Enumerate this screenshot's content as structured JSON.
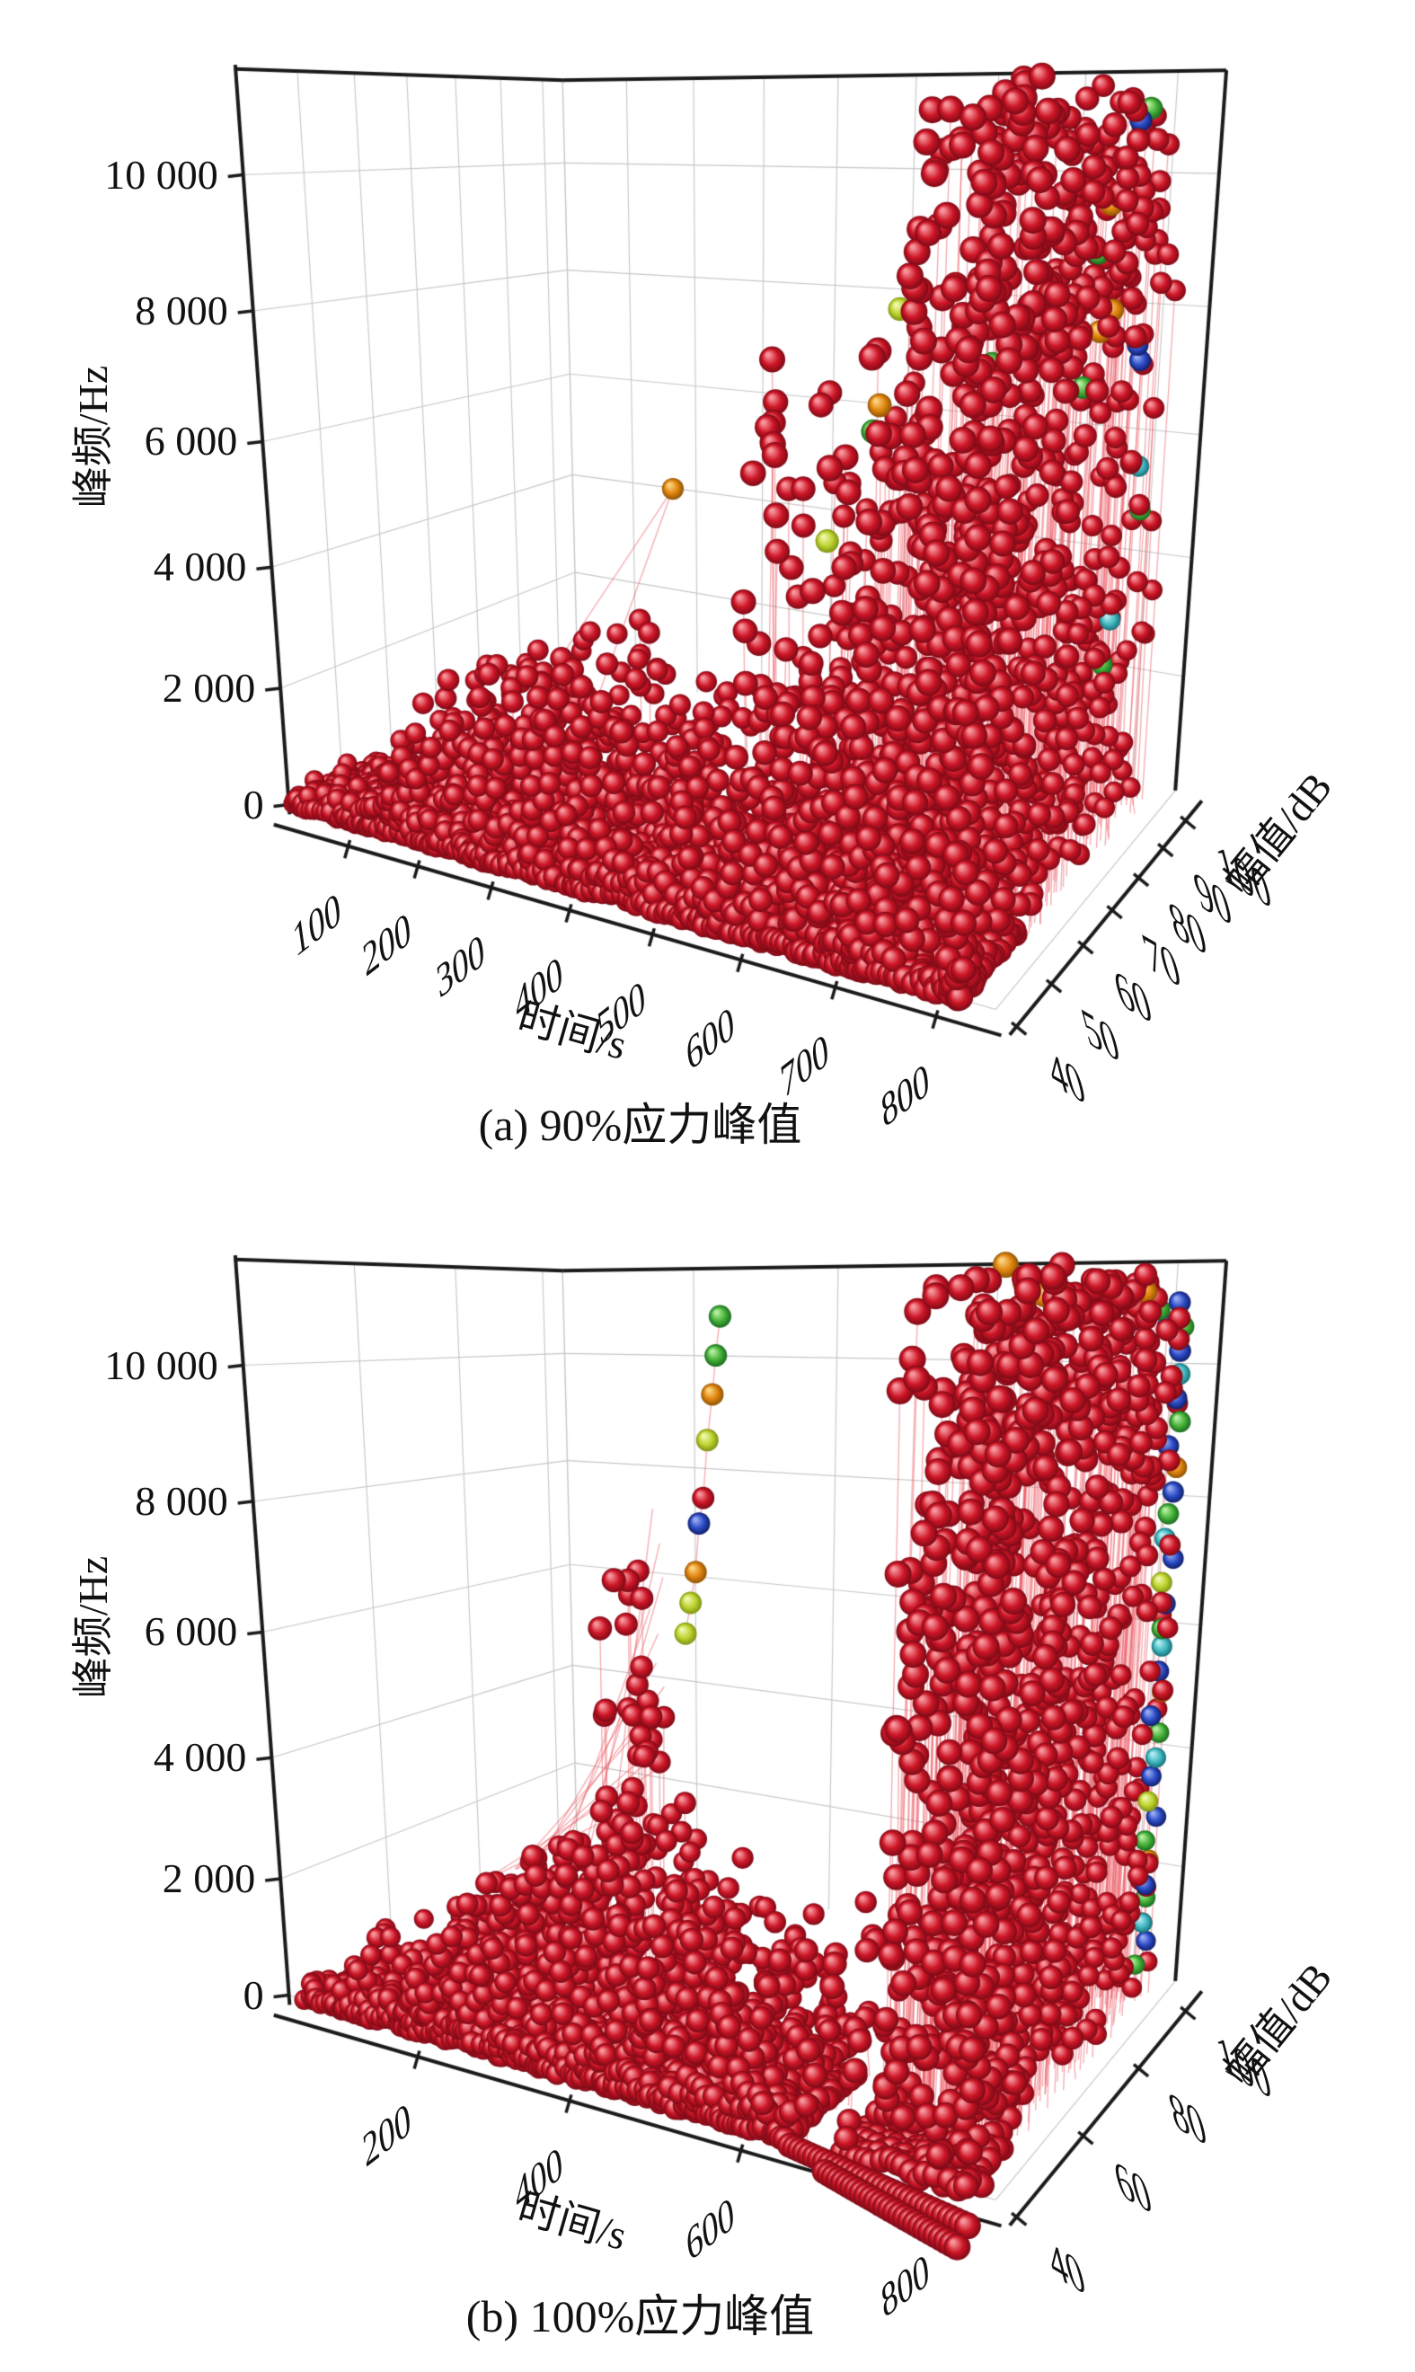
{
  "figure": {
    "background": "#ffffff"
  },
  "palette": {
    "red": {
      "hi": "#f7959b",
      "mid": "#ce1627",
      "lo": "#7c0a16"
    },
    "green": {
      "hi": "#b8eda0",
      "mid": "#46b33a",
      "lo": "#1a6b1f"
    },
    "yellowgreen": {
      "hi": "#eef7ac",
      "mid": "#bfd42f",
      "lo": "#7e9214"
    },
    "orange": {
      "hi": "#fad37f",
      "mid": "#e2860f",
      "lo": "#8f5406"
    },
    "yellow": {
      "hi": "#faf0a0",
      "mid": "#dfca1e",
      "lo": "#968a0c"
    },
    "blue": {
      "hi": "#97a9ef",
      "mid": "#2d4dc8",
      "lo": "#101e66"
    },
    "cyan": {
      "hi": "#b2ecf0",
      "mid": "#45bac3",
      "lo": "#177078"
    },
    "line": "rgba(236,88,98,0.5)",
    "grid": "#c7c7c7",
    "edge": "#1a1a1a"
  },
  "chart_data": [
    {
      "type": "scatter",
      "projection": "3d-perspective",
      "title": "(a) 90%应力峰值",
      "xlabel": "时间/s",
      "ylabel": "幅值/dB",
      "zlabel": "峰频/Hz",
      "xlim": [
        0,
        850
      ],
      "ylim": [
        35,
        105
      ],
      "zlim": [
        0,
        11500
      ],
      "xticks": {
        "values": [
          100,
          200,
          300,
          400,
          500,
          600,
          700,
          800
        ],
        "labels": [
          "100",
          "200",
          "300",
          "400",
          "500",
          "600",
          "700",
          "800"
        ]
      },
      "yticks": {
        "values": [
          40,
          50,
          60,
          70,
          80,
          90,
          100
        ],
        "labels": [
          "40",
          "50",
          "60",
          "70",
          "80",
          "90",
          "100"
        ]
      },
      "zticks": {
        "values": [
          0,
          2000,
          4000,
          6000,
          8000,
          10000
        ],
        "labels": [
          "0",
          "2 000",
          "4 000",
          "6 000",
          "8 000",
          "10 000"
        ]
      },
      "grid": true,
      "legend": null,
      "point_color_majority": "red",
      "rows": [
        {
          "t": [
            6,
            818
          ],
          "step": 7.5,
          "ampStart": 40,
          "ampStep": 1.35,
          "ampCount": 13,
          "fJit": 130,
          "color": "red"
        }
      ],
      "clusters": [
        {
          "count": 900,
          "t": [
            6,
            818
          ],
          "a": [
            40,
            58
          ],
          "ab": 2.2,
          "f": [
            0,
            360
          ],
          "fb": 2.6,
          "lp": 0,
          "color": "red"
        },
        {
          "count": 760,
          "t": [
            112,
            575
          ],
          "a": [
            40,
            64
          ],
          "ab": 2.0,
          "f": [
            260,
            3350
          ],
          "fb": 1.9,
          "env": "hill",
          "lp": 0.1,
          "color": "red"
        },
        {
          "count": 120,
          "t": [
            560,
            745
          ],
          "a": [
            40,
            62
          ],
          "ab": 2.0,
          "f": [
            200,
            1800
          ],
          "fb": 2.0,
          "lp": 0.15,
          "color": "red"
        },
        {
          "count": 230,
          "t": [
            576,
            646
          ],
          "a": [
            40,
            80
          ],
          "ab": 1.8,
          "f": [
            300,
            8300
          ],
          "fb": 1.55,
          "env": "hill",
          "lp": 0.5,
          "color": "red"
        },
        {
          "count": 150,
          "t": [
            648,
            694
          ],
          "a": [
            40,
            76
          ],
          "ab": 1.8,
          "f": [
            300,
            7000
          ],
          "fb": 1.6,
          "env": "hill",
          "lp": 0.5,
          "color": "red"
        },
        {
          "count": 190,
          "t": [
            696,
            740
          ],
          "a": [
            40,
            86
          ],
          "ab": 1.7,
          "f": [
            300,
            8800
          ],
          "fb": 1.5,
          "env": "hill",
          "lp": 0.5,
          "color": "red"
        },
        {
          "count": 700,
          "t": [
            742,
            824
          ],
          "a": [
            40,
            101
          ],
          "ab": 1.6,
          "f": [
            0,
            11000
          ],
          "fb": 1.3,
          "lp": 0.45,
          "color": "red"
        },
        {
          "count": 85,
          "t": [
            766,
            822
          ],
          "a": [
            55,
            100
          ],
          "ab": 1.2,
          "f": [
            8300,
            11350
          ],
          "fb": 1.0,
          "lp": 0.3,
          "color": "red"
        }
      ],
      "special_points": [
        [
          400,
          62,
          5400,
          "orange"
        ],
        [
          396,
          55,
          3560,
          "red"
        ],
        [
          413,
          54,
          3430,
          "red"
        ],
        [
          600,
          58,
          5080,
          "yellowgreen"
        ],
        [
          640,
          66,
          8250,
          "yellowgreen"
        ],
        [
          645,
          60,
          7020,
          "orange"
        ],
        [
          647,
          58,
          6700,
          "green"
        ],
        [
          712,
          74,
          8020,
          "yellowgreen"
        ],
        [
          716,
          72,
          7480,
          "green"
        ],
        [
          710,
          70,
          6950,
          "green"
        ],
        [
          802,
          94,
          10950,
          "green"
        ],
        [
          797,
          92,
          10780,
          "blue"
        ],
        [
          788,
          86,
          9620,
          "orange"
        ],
        [
          783,
          84,
          8950,
          "green"
        ],
        [
          790,
          88,
          8100,
          "orange"
        ],
        [
          786,
          85,
          7820,
          "orange"
        ],
        [
          800,
          95,
          7500,
          "blue"
        ],
        [
          801,
          96,
          7250,
          "blue"
        ],
        [
          780,
          82,
          7050,
          "green"
        ],
        [
          804,
          97,
          5600,
          "cyan"
        ],
        [
          806,
          98,
          4880,
          "green"
        ],
        [
          798,
          91,
          3300,
          "cyan"
        ],
        [
          795,
          90,
          2600,
          "green"
        ]
      ],
      "extra_lines": [
        [
          212,
          42,
          100,
          400,
          62,
          5400
        ],
        [
          335,
          43,
          80,
          400,
          62,
          5400
        ],
        [
          396,
          55,
          120,
          396,
          55,
          3560
        ],
        [
          413,
          54,
          110,
          413,
          54,
          3430
        ]
      ],
      "link_chains": [],
      "strings": []
    },
    {
      "type": "scatter",
      "projection": "3d-perspective",
      "title": "(b) 100%应力峰值",
      "xlabel": "时间/s",
      "ylabel": "幅值/dB",
      "zlabel": "峰频/Hz",
      "xlim": [
        0,
        850
      ],
      "ylim": [
        35,
        105
      ],
      "zlim": [
        0,
        11500
      ],
      "xticks": {
        "values": [
          200,
          400,
          600,
          800
        ],
        "labels": [
          "200",
          "400",
          "600",
          "800"
        ]
      },
      "yticks": {
        "values": [
          40,
          60,
          80,
          100
        ],
        "labels": [
          "40",
          "60",
          "80",
          "100"
        ]
      },
      "zticks": {
        "values": [
          0,
          2000,
          4000,
          6000,
          8000,
          10000
        ],
        "labels": [
          "0",
          "2 000",
          "4 000",
          "6 000",
          "8 000",
          "10 000"
        ]
      },
      "grid": true,
      "legend": null,
      "point_color_majority": "red",
      "rows": [
        {
          "t": [
            26,
            646
          ],
          "step": 7.5,
          "ampStart": 40,
          "ampStep": 1.35,
          "ampCount": 13,
          "fJit": 130,
          "color": "red"
        },
        {
          "t": [
            702,
            828
          ],
          "step": 7.5,
          "ampStart": 40,
          "ampStep": 1.35,
          "ampCount": 8,
          "fJit": 130,
          "color": "red"
        }
      ],
      "clusters": [
        {
          "count": 800,
          "t": [
            26,
            646
          ],
          "a": [
            40,
            58
          ],
          "ab": 2.2,
          "f": [
            0,
            360
          ],
          "fb": 2.6,
          "lp": 0,
          "color": "red"
        },
        {
          "count": 950,
          "t": [
            168,
            622
          ],
          "a": [
            40,
            66
          ],
          "ab": 2.0,
          "f": [
            260,
            3350
          ],
          "fb": 1.9,
          "env": "hill",
          "lp": 0.08,
          "color": "red"
        },
        {
          "count": 60,
          "t": [
            95,
            170
          ],
          "a": [
            40,
            55
          ],
          "ab": 2.0,
          "f": [
            150,
            1300
          ],
          "fb": 2.0,
          "lp": 0,
          "color": "red"
        },
        {
          "count": 45,
          "t": [
            600,
            742
          ],
          "a": [
            40,
            70
          ],
          "ab": 1.8,
          "f": [
            250,
            2600
          ],
          "fb": 1.8,
          "lp": 0.3,
          "color": "red"
        },
        {
          "count": 1000,
          "t": [
            738,
            828
          ],
          "a": [
            40,
            103
          ],
          "ab": 1.5,
          "f": [
            0,
            11200
          ],
          "fb": 1.22,
          "lp": 0.4,
          "color": "red"
        },
        {
          "count": 90,
          "t": [
            748,
            826
          ],
          "a": [
            55,
            102
          ],
          "ab": 1.2,
          "f": [
            8800,
            11350
          ],
          "fb": 1.0,
          "lp": 0.25,
          "color": "red"
        },
        {
          "count": 26,
          "t": [
            398,
            448
          ],
          "a": [
            43,
            57
          ],
          "ab": 1.0,
          "f": [
            3300,
            7400
          ],
          "fb": 1.0,
          "lp": 0.85,
          "color": "red"
        }
      ],
      "special_points": [
        [
          404,
          54,
          7180,
          "red"
        ],
        [
          412,
          50,
          6500,
          "red"
        ],
        [
          418,
          52,
          5850,
          "red"
        ],
        [
          424,
          49,
          5230,
          "red"
        ],
        [
          429,
          51,
          4650,
          "red"
        ],
        [
          434,
          47,
          4230,
          "red"
        ],
        [
          408,
          45,
          3900,
          "red"
        ],
        [
          438,
          46,
          3620,
          "red"
        ],
        [
          752,
          62,
          11340,
          "orange"
        ],
        [
          758,
          66,
          11120,
          "orange"
        ],
        [
          764,
          70,
          10980,
          "orange"
        ],
        [
          796,
          94,
          11050,
          "orange"
        ],
        [
          803,
          97,
          10800,
          "green"
        ],
        [
          808,
          99,
          10550,
          "blue"
        ],
        [
          814,
          101,
          10900,
          "blue"
        ],
        [
          817,
          102,
          10550,
          "green"
        ],
        [
          820,
          100,
          10200,
          "blue"
        ],
        [
          814,
          103,
          9850,
          "cyan"
        ],
        [
          817,
          101,
          9500,
          "blue"
        ],
        [
          820,
          102,
          9150,
          "green"
        ],
        [
          814,
          100,
          8800,
          "blue"
        ],
        [
          817,
          103,
          8450,
          "orange"
        ],
        [
          820,
          101,
          8100,
          "blue"
        ],
        [
          814,
          102,
          7750,
          "green"
        ],
        [
          817,
          100,
          7400,
          "cyan"
        ],
        [
          820,
          103,
          7050,
          "blue"
        ],
        [
          814,
          101,
          6700,
          "yellowgreen"
        ],
        [
          817,
          102,
          6350,
          "blue"
        ],
        [
          820,
          100,
          6000,
          "green"
        ],
        [
          814,
          103,
          5650,
          "cyan"
        ],
        [
          817,
          101,
          5300,
          "blue"
        ],
        [
          820,
          102,
          4950,
          "orange"
        ],
        [
          814,
          100,
          4600,
          "blue"
        ],
        [
          817,
          103,
          4250,
          "green"
        ],
        [
          820,
          101,
          3900,
          "cyan"
        ],
        [
          814,
          102,
          3550,
          "blue"
        ],
        [
          817,
          100,
          3200,
          "yellowgreen"
        ],
        [
          820,
          103,
          2850,
          "blue"
        ],
        [
          814,
          101,
          2500,
          "green"
        ],
        [
          817,
          102,
          2150,
          "orange"
        ],
        [
          820,
          100,
          1800,
          "blue"
        ],
        [
          814,
          103,
          1450,
          "green"
        ],
        [
          817,
          101,
          1100,
          "cyan"
        ],
        [
          820,
          102,
          750,
          "blue"
        ],
        [
          814,
          100,
          400,
          "green"
        ]
      ],
      "extra_lines": [
        [
          262,
          44,
          2500,
          424,
          52,
          3900
        ],
        [
          275,
          45,
          2650,
          427,
          53,
          4300
        ],
        [
          290,
          46,
          2700,
          429,
          54,
          4700
        ],
        [
          305,
          44,
          2800,
          426,
          52,
          5100
        ],
        [
          318,
          46,
          2900,
          428,
          55,
          5500
        ],
        [
          330,
          45,
          3000,
          430,
          53,
          5900
        ],
        [
          342,
          47,
          3050,
          427,
          54,
          6300
        ],
        [
          355,
          46,
          3100,
          429,
          52,
          6700
        ],
        [
          368,
          48,
          3150,
          428,
          55,
          7100
        ],
        [
          380,
          47,
          3200,
          430,
          54,
          7600
        ],
        [
          395,
          49,
          3250,
          428,
          53,
          8100
        ],
        [
          300,
          45,
          2750,
          428,
          52,
          4500
        ]
      ],
      "link_chains": [
        {
          "points": [
            [
              428,
              68,
              10700,
              "green"
            ],
            [
              428,
              67,
              10150,
              "green"
            ],
            [
              429,
              66,
              9600,
              "orange"
            ],
            [
              428,
              65,
              8950,
              "yellowgreen"
            ],
            [
              428,
              64,
              8120,
              "red"
            ],
            [
              428,
              63,
              7760,
              "blue"
            ],
            [
              429,
              62,
              7060,
              "orange"
            ],
            [
              428,
              61,
              6620,
              "yellowgreen"
            ],
            [
              427,
              60,
              6180,
              "yellowgreen"
            ]
          ]
        }
      ],
      "strings": [
        {
          "from": [
            650,
            39,
            0
          ],
          "to": [
            845,
            34,
            0
          ],
          "beads": 34,
          "color": "red"
        },
        {
          "from": [
            700,
            36,
            0
          ],
          "to": [
            850,
            30,
            0
          ],
          "beads": 28,
          "color": "red"
        },
        {
          "from": [
            720,
            48,
            0
          ],
          "to": [
            830,
            42,
            0
          ],
          "beads": 20,
          "color": "red"
        }
      ]
    }
  ]
}
